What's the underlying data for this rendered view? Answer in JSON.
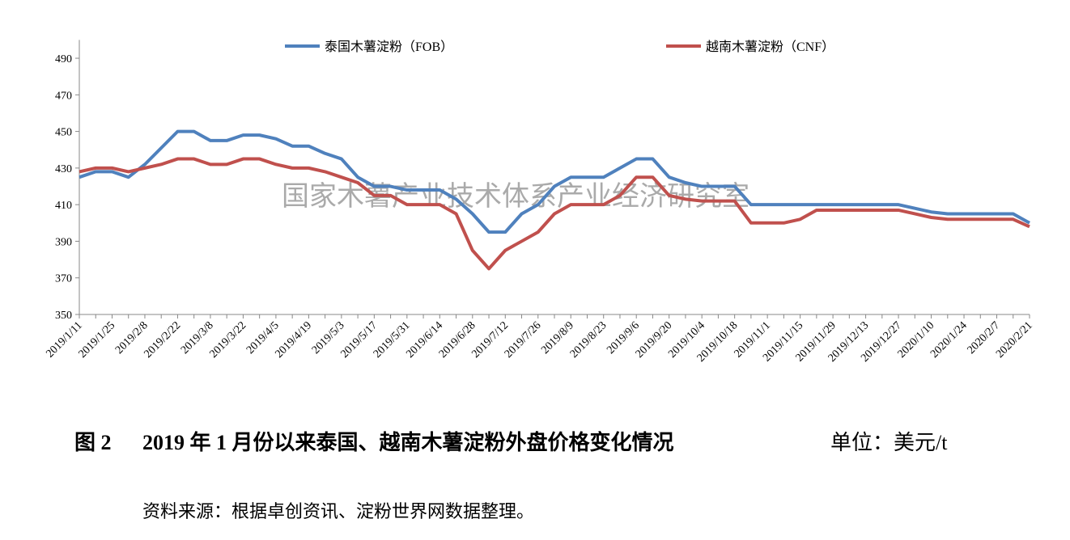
{
  "chart_data": {
    "type": "line",
    "figure_label": "图 2",
    "title": "2019 年 1 月份以来泰国、越南木薯淀粉外盘价格变化情况",
    "unit_note": "单位：美元/t",
    "source": "资料来源：根据卓创资讯、淀粉世界网数据整理。",
    "watermark": "国家木薯产业技术体系产业经济研究室",
    "categories": [
      "2019/1/11",
      null,
      "2019/1/25",
      null,
      "2019/2/8",
      null,
      "2019/2/22",
      null,
      "2019/3/8",
      null,
      "2019/3/22",
      null,
      "2019/4/5",
      null,
      "2019/4/19",
      null,
      "2019/5/3",
      null,
      "2019/5/17",
      null,
      "2019/5/31",
      null,
      "2019/6/14",
      null,
      "2019/6/28",
      null,
      "2019/7/12",
      null,
      "2019/7/26",
      null,
      "2019/8/9",
      null,
      "2019/8/23",
      null,
      "2019/9/6",
      null,
      "2019/9/20",
      null,
      "2019/10/4",
      null,
      "2019/10/18",
      null,
      "2019/11/1",
      null,
      "2019/11/15",
      null,
      "2019/11/29",
      null,
      "2019/12/13",
      null,
      "2019/12/27",
      null,
      "2020/1/10",
      null,
      "2020/1/24",
      null,
      "2020/2/7",
      null,
      "2020/2/21"
    ],
    "series": [
      {
        "name": "泰国木薯淀粉（FOB）",
        "color": "#4f81bd",
        "values": [
          425,
          428,
          428,
          425,
          432,
          441,
          450,
          450,
          445,
          445,
          448,
          448,
          446,
          442,
          442,
          438,
          435,
          425,
          420,
          420,
          418,
          418,
          418,
          413,
          405,
          395,
          395,
          405,
          410,
          420,
          425,
          425,
          425,
          430,
          435,
          435,
          425,
          422,
          420,
          420,
          420,
          410,
          410,
          410,
          410,
          410,
          410,
          410,
          410,
          410,
          410,
          408,
          406,
          405,
          405,
          405,
          405,
          405,
          400
        ]
      },
      {
        "name": "越南木薯淀粉（CNF）",
        "color": "#c0504d",
        "values": [
          428,
          430,
          430,
          428,
          430,
          432,
          435,
          435,
          432,
          432,
          435,
          435,
          432,
          430,
          430,
          428,
          425,
          422,
          415,
          415,
          410,
          410,
          410,
          405,
          385,
          375,
          385,
          390,
          395,
          405,
          410,
          410,
          410,
          415,
          425,
          425,
          415,
          413,
          412,
          412,
          412,
          400,
          400,
          400,
          402,
          407,
          407,
          407,
          407,
          407,
          407,
          405,
          403,
          402,
          402,
          402,
          402,
          402,
          398
        ]
      }
    ],
    "ylim": [
      350,
      500
    ],
    "yticks": [
      350,
      370,
      390,
      410,
      430,
      450,
      470,
      490
    ],
    "grid": false
  }
}
